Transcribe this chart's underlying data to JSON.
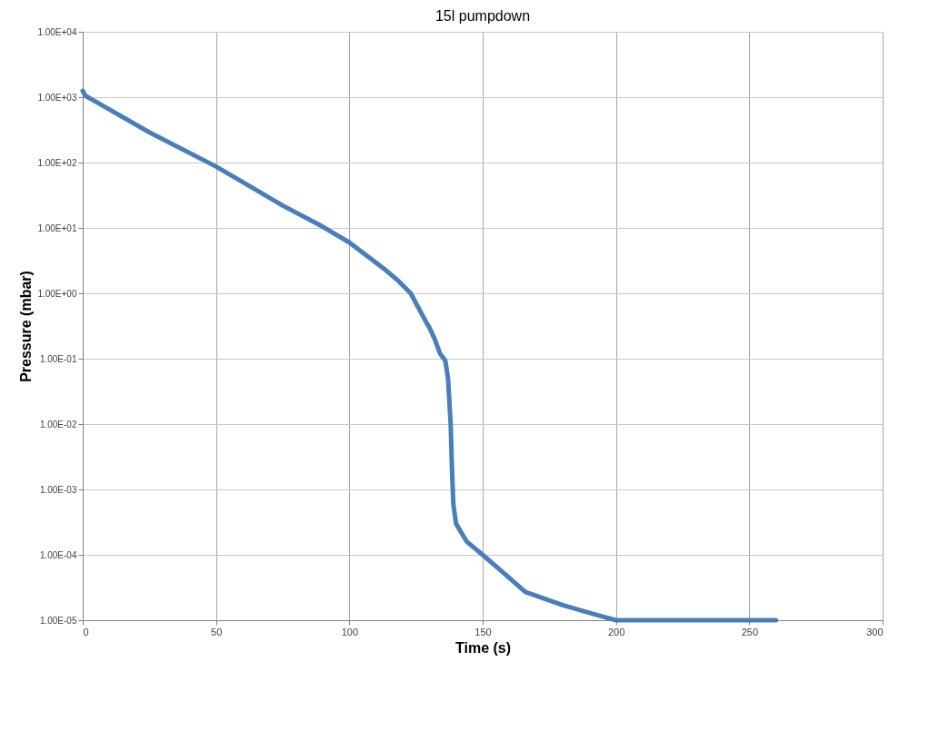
{
  "chart_data": {
    "type": "line",
    "title": "15l pumpdown",
    "xlabel": "Time (s)",
    "ylabel": "Pressure (mbar)",
    "log": "y",
    "grid": true,
    "marker": "none",
    "line_style": "solid",
    "xlim": [
      0,
      300
    ],
    "xticks": [
      0,
      50,
      100,
      150,
      200,
      250,
      300
    ],
    "ylim": [
      1e-05,
      10000
    ],
    "yticks": [
      {
        "value": 10000,
        "label": "1.00E+04"
      },
      {
        "value": 1000,
        "label": "1.00E+03"
      },
      {
        "value": 100,
        "label": "1.00E+02"
      },
      {
        "value": 10,
        "label": "1.00E+01"
      },
      {
        "value": 1,
        "label": "1.00E+00"
      },
      {
        "value": 0.1,
        "label": "1.00E-01"
      },
      {
        "value": 0.01,
        "label": "1.00E-02"
      },
      {
        "value": 0.001,
        "label": "1.00E-03"
      },
      {
        "value": 0.0001,
        "label": "1.00E-04"
      },
      {
        "value": 1e-05,
        "label": "1.00E-05"
      }
    ],
    "series": [
      {
        "color": "#4a7ebb",
        "x": [
          0,
          1,
          5,
          25,
          50,
          75,
          89,
          100,
          114,
          118,
          123,
          129,
          130,
          132,
          134,
          136,
          137,
          138,
          138.5,
          139,
          140,
          144,
          150,
          159,
          166,
          180,
          193,
          200,
          230,
          260
        ],
        "values": [
          1250,
          1050,
          850,
          290,
          87,
          22,
          11,
          6.0,
          2.2,
          1.6,
          1.0,
          0.35,
          0.3,
          0.2,
          0.12,
          0.093,
          0.05,
          0.01,
          0.002,
          0.0006,
          0.0003,
          0.00016,
          0.0001,
          4.8e-05,
          2.7e-05,
          1.7e-05,
          1.2e-05,
          1e-05,
          1e-05,
          1e-05
        ]
      }
    ]
  }
}
